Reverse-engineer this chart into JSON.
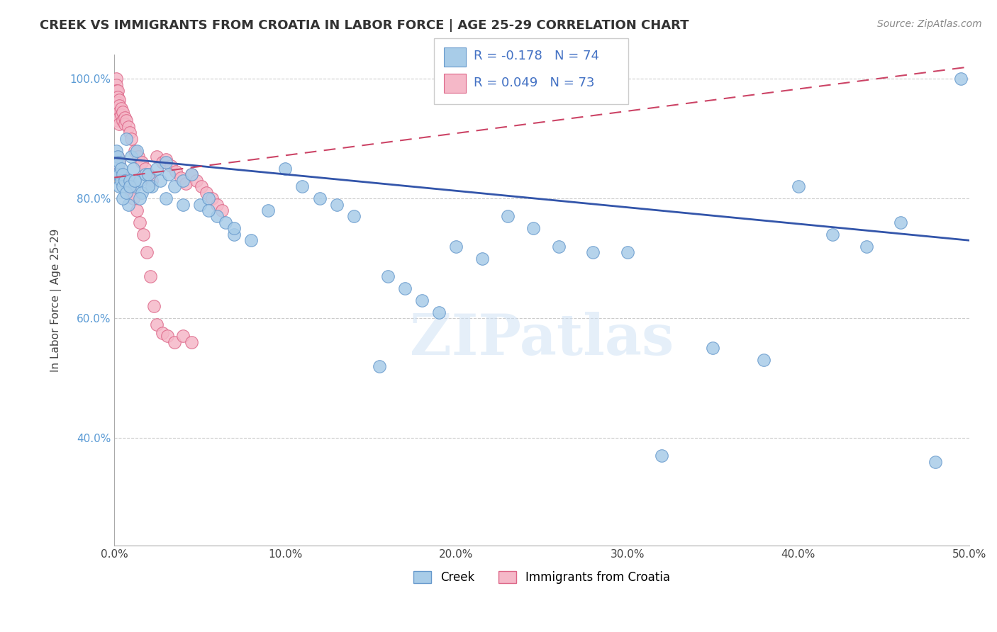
{
  "title": "CREEK VS IMMIGRANTS FROM CROATIA IN LABOR FORCE | AGE 25-29 CORRELATION CHART",
  "source": "Source: ZipAtlas.com",
  "ylabel": "In Labor Force | Age 25-29",
  "x_min": 0.0,
  "x_max": 0.5,
  "y_min": 0.22,
  "y_max": 1.04,
  "x_ticks": [
    0.0,
    0.1,
    0.2,
    0.3,
    0.4,
    0.5
  ],
  "x_tick_labels": [
    "0.0%",
    "10.0%",
    "20.0%",
    "30.0%",
    "40.0%",
    "50.0%"
  ],
  "y_ticks": [
    0.4,
    0.6,
    0.8,
    1.0
  ],
  "y_tick_labels": [
    "40.0%",
    "60.0%",
    "80.0%",
    "100.0%"
  ],
  "grid_color": "#cccccc",
  "background_color": "#ffffff",
  "creek_color": "#a8cce8",
  "creek_edge_color": "#6699cc",
  "croatia_color": "#f5b8c8",
  "croatia_edge_color": "#dd6688",
  "creek_line_color": "#3355aa",
  "croatia_line_color": "#cc4466",
  "legend_creek_label": "Creek",
  "legend_croatia_label": "Immigrants from Croatia",
  "watermark": "ZIPatlas",
  "creek_line_y0": 0.868,
  "creek_line_y1": 0.73,
  "croatia_line_y0": 0.835,
  "croatia_line_y1": 1.02,
  "creek_points_x": [
    0.001,
    0.001,
    0.002,
    0.002,
    0.003,
    0.003,
    0.003,
    0.004,
    0.004,
    0.005,
    0.005,
    0.006,
    0.007,
    0.008,
    0.009,
    0.01,
    0.011,
    0.012,
    0.013,
    0.015,
    0.016,
    0.018,
    0.02,
    0.022,
    0.025,
    0.027,
    0.03,
    0.032,
    0.035,
    0.04,
    0.045,
    0.05,
    0.055,
    0.06,
    0.065,
    0.07,
    0.08,
    0.09,
    0.1,
    0.11,
    0.12,
    0.13,
    0.14,
    0.155,
    0.16,
    0.17,
    0.18,
    0.19,
    0.2,
    0.215,
    0.23,
    0.245,
    0.26,
    0.28,
    0.3,
    0.32,
    0.35,
    0.38,
    0.4,
    0.42,
    0.44,
    0.46,
    0.48,
    0.495,
    0.005,
    0.007,
    0.009,
    0.012,
    0.015,
    0.02,
    0.03,
    0.04,
    0.055,
    0.07
  ],
  "creek_points_y": [
    0.88,
    0.86,
    0.87,
    0.84,
    0.86,
    0.84,
    0.82,
    0.85,
    0.83,
    0.84,
    0.82,
    0.83,
    0.9,
    0.79,
    0.83,
    0.87,
    0.85,
    0.82,
    0.88,
    0.83,
    0.81,
    0.84,
    0.84,
    0.82,
    0.85,
    0.83,
    0.86,
    0.84,
    0.82,
    0.83,
    0.84,
    0.79,
    0.8,
    0.77,
    0.76,
    0.74,
    0.73,
    0.78,
    0.85,
    0.82,
    0.8,
    0.79,
    0.77,
    0.52,
    0.67,
    0.65,
    0.63,
    0.61,
    0.72,
    0.7,
    0.77,
    0.75,
    0.72,
    0.71,
    0.71,
    0.37,
    0.55,
    0.53,
    0.82,
    0.74,
    0.72,
    0.76,
    0.36,
    1.0,
    0.8,
    0.81,
    0.82,
    0.83,
    0.8,
    0.82,
    0.8,
    0.79,
    0.78,
    0.75
  ],
  "croatia_points_x": [
    0.001,
    0.001,
    0.001,
    0.001,
    0.001,
    0.001,
    0.001,
    0.002,
    0.002,
    0.002,
    0.002,
    0.002,
    0.002,
    0.003,
    0.003,
    0.003,
    0.003,
    0.003,
    0.004,
    0.004,
    0.005,
    0.005,
    0.006,
    0.006,
    0.007,
    0.008,
    0.009,
    0.01,
    0.012,
    0.014,
    0.016,
    0.018,
    0.02,
    0.022,
    0.025,
    0.028,
    0.03,
    0.033,
    0.036,
    0.039,
    0.042,
    0.045,
    0.048,
    0.051,
    0.054,
    0.057,
    0.06,
    0.063,
    0.001,
    0.002,
    0.002,
    0.003,
    0.003,
    0.004,
    0.005,
    0.006,
    0.007,
    0.008,
    0.009,
    0.01,
    0.011,
    0.013,
    0.015,
    0.017,
    0.019,
    0.021,
    0.023,
    0.025,
    0.028,
    0.031,
    0.035,
    0.04,
    0.045
  ],
  "croatia_points_y": [
    1.0,
    0.99,
    0.98,
    0.97,
    0.96,
    0.95,
    0.94,
    0.98,
    0.97,
    0.96,
    0.95,
    0.94,
    0.93,
    0.965,
    0.955,
    0.945,
    0.935,
    0.925,
    0.95,
    0.94,
    0.945,
    0.93,
    0.935,
    0.925,
    0.93,
    0.92,
    0.91,
    0.9,
    0.88,
    0.87,
    0.86,
    0.85,
    0.84,
    0.83,
    0.87,
    0.86,
    0.865,
    0.855,
    0.845,
    0.835,
    0.825,
    0.84,
    0.83,
    0.82,
    0.81,
    0.8,
    0.79,
    0.78,
    0.85,
    0.87,
    0.855,
    0.86,
    0.845,
    0.84,
    0.835,
    0.83,
    0.83,
    0.825,
    0.82,
    0.81,
    0.8,
    0.78,
    0.76,
    0.74,
    0.71,
    0.67,
    0.62,
    0.59,
    0.575,
    0.57,
    0.56,
    0.57,
    0.56
  ]
}
